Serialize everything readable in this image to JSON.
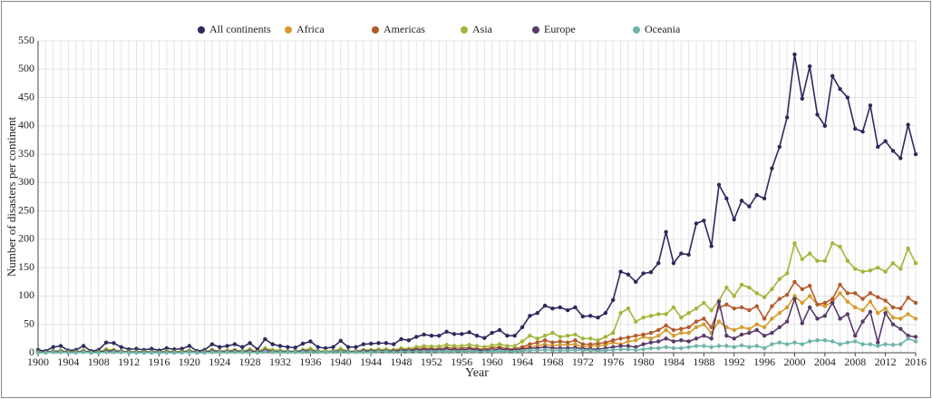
{
  "chart_data": {
    "type": "line",
    "xlabel": "Year",
    "ylabel": "Number of disasters per continent",
    "x": [
      1900,
      1901,
      1902,
      1903,
      1904,
      1905,
      1906,
      1907,
      1908,
      1909,
      1910,
      1911,
      1912,
      1913,
      1914,
      1915,
      1916,
      1917,
      1918,
      1919,
      1920,
      1921,
      1922,
      1923,
      1924,
      1925,
      1926,
      1927,
      1928,
      1929,
      1930,
      1931,
      1932,
      1933,
      1934,
      1935,
      1936,
      1937,
      1938,
      1939,
      1940,
      1941,
      1942,
      1943,
      1944,
      1945,
      1946,
      1947,
      1948,
      1949,
      1950,
      1951,
      1952,
      1953,
      1954,
      1955,
      1956,
      1957,
      1958,
      1959,
      1960,
      1961,
      1962,
      1963,
      1964,
      1965,
      1966,
      1967,
      1968,
      1969,
      1970,
      1971,
      1972,
      1973,
      1974,
      1975,
      1976,
      1977,
      1978,
      1979,
      1980,
      1981,
      1982,
      1983,
      1984,
      1985,
      1986,
      1987,
      1988,
      1989,
      1990,
      1991,
      1992,
      1993,
      1994,
      1995,
      1996,
      1997,
      1998,
      1999,
      2000,
      2001,
      2002,
      2003,
      2004,
      2005,
      2006,
      2007,
      2008,
      2009,
      2010,
      2011,
      2012,
      2013,
      2014,
      2015,
      2016
    ],
    "xlim": [
      1900,
      2016
    ],
    "xticks": [
      1900,
      1904,
      1908,
      1912,
      1916,
      1920,
      1924,
      1928,
      1932,
      1936,
      1940,
      1944,
      1948,
      1952,
      1956,
      1960,
      1964,
      1968,
      1972,
      1976,
      1980,
      1984,
      1988,
      1992,
      1996,
      2000,
      2004,
      2008,
      2012,
      2016
    ],
    "ylim": [
      0,
      550
    ],
    "yticks": [
      0,
      50,
      100,
      150,
      200,
      250,
      300,
      350,
      400,
      450,
      500,
      550
    ],
    "grid": true,
    "legend": "top",
    "series": [
      {
        "name": "All continents",
        "color": "#2d2a5e",
        "values": [
          5,
          3,
          10,
          12,
          4,
          5,
          12,
          3,
          5,
          18,
          17,
          10,
          6,
          7,
          5,
          7,
          4,
          8,
          6,
          7,
          12,
          3,
          5,
          15,
          10,
          12,
          15,
          10,
          17,
          6,
          24,
          15,
          12,
          10,
          9,
          16,
          20,
          10,
          8,
          10,
          21,
          10,
          10,
          15,
          16,
          17,
          17,
          15,
          24,
          22,
          28,
          32,
          30,
          30,
          37,
          33,
          33,
          36,
          30,
          26,
          35,
          40,
          30,
          30,
          45,
          65,
          70,
          83,
          78,
          80,
          75,
          80,
          64,
          65,
          62,
          70,
          93,
          143,
          138,
          125,
          140,
          142,
          158,
          213,
          158,
          175,
          173,
          228,
          233,
          188,
          296,
          272,
          235,
          268,
          258,
          278,
          272,
          325,
          363,
          415,
          526,
          448,
          505,
          420,
          400,
          488,
          465,
          450,
          395,
          390,
          436,
          363,
          373,
          356,
          343,
          402,
          350
        ]
      },
      {
        "name": "Africa",
        "color": "#d69a2d",
        "values": [
          1,
          0,
          2,
          2,
          1,
          1,
          2,
          0,
          1,
          3,
          3,
          2,
          1,
          1,
          1,
          1,
          1,
          1,
          1,
          1,
          2,
          0,
          1,
          2,
          2,
          2,
          2,
          2,
          3,
          1,
          4,
          2,
          2,
          2,
          1,
          3,
          3,
          2,
          1,
          2,
          3,
          2,
          2,
          2,
          3,
          3,
          3,
          2,
          4,
          3,
          4,
          5,
          5,
          5,
          6,
          5,
          5,
          6,
          5,
          4,
          6,
          7,
          5,
          5,
          8,
          10,
          12,
          15,
          12,
          14,
          14,
          15,
          10,
          12,
          12,
          14,
          18,
          15,
          20,
          22,
          28,
          25,
          30,
          40,
          30,
          35,
          35,
          45,
          50,
          35,
          55,
          45,
          40,
          45,
          42,
          50,
          45,
          60,
          70,
          80,
          100,
          88,
          100,
          85,
          82,
          90,
          105,
          90,
          80,
          75,
          90,
          70,
          78,
          62,
          60,
          68,
          60
        ]
      },
      {
        "name": "Americas",
        "color": "#b35a2a",
        "values": [
          1,
          1,
          2,
          3,
          1,
          1,
          3,
          1,
          1,
          4,
          4,
          2,
          1,
          2,
          1,
          2,
          1,
          2,
          1,
          2,
          3,
          1,
          1,
          4,
          2,
          3,
          4,
          2,
          4,
          1,
          6,
          3,
          3,
          2,
          2,
          4,
          5,
          2,
          2,
          2,
          5,
          2,
          2,
          3,
          4,
          4,
          4,
          3,
          6,
          5,
          7,
          8,
          7,
          7,
          9,
          8,
          8,
          9,
          7,
          6,
          9,
          10,
          7,
          7,
          10,
          15,
          18,
          22,
          18,
          20,
          18,
          22,
          15,
          15,
          16,
          18,
          22,
          25,
          27,
          30,
          32,
          35,
          40,
          48,
          40,
          42,
          45,
          55,
          60,
          45,
          80,
          85,
          78,
          80,
          75,
          82,
          60,
          82,
          95,
          102,
          125,
          112,
          118,
          85,
          88,
          95,
          120,
          105,
          105,
          95,
          105,
          98,
          92,
          80,
          78,
          97,
          88
        ]
      },
      {
        "name": "Asia",
        "color": "#a3b53a",
        "values": [
          2,
          1,
          3,
          4,
          2,
          2,
          4,
          1,
          2,
          6,
          5,
          3,
          2,
          2,
          2,
          2,
          1,
          3,
          2,
          2,
          4,
          1,
          2,
          5,
          3,
          4,
          5,
          3,
          6,
          2,
          8,
          5,
          4,
          3,
          3,
          5,
          7,
          3,
          3,
          3,
          7,
          3,
          3,
          5,
          5,
          6,
          6,
          5,
          8,
          7,
          10,
          12,
          11,
          11,
          14,
          12,
          12,
          14,
          12,
          10,
          13,
          15,
          12,
          12,
          20,
          30,
          25,
          30,
          35,
          28,
          30,
          32,
          25,
          25,
          22,
          28,
          35,
          70,
          78,
          55,
          62,
          65,
          68,
          68,
          80,
          62,
          70,
          78,
          88,
          75,
          92,
          115,
          100,
          120,
          115,
          105,
          98,
          112,
          130,
          140,
          193,
          165,
          175,
          162,
          162,
          193,
          187,
          162,
          148,
          143,
          145,
          150,
          143,
          158,
          148,
          184,
          158
        ]
      },
      {
        "name": "Europe",
        "color": "#5a3a6a",
        "values": [
          1,
          1,
          2,
          2,
          1,
          1,
          2,
          1,
          1,
          3,
          3,
          2,
          1,
          1,
          1,
          1,
          1,
          1,
          1,
          1,
          2,
          1,
          1,
          3,
          2,
          2,
          3,
          2,
          3,
          1,
          4,
          2,
          2,
          2,
          2,
          3,
          3,
          2,
          1,
          2,
          3,
          2,
          2,
          3,
          3,
          3,
          3,
          3,
          4,
          4,
          5,
          5,
          5,
          5,
          6,
          5,
          5,
          6,
          5,
          4,
          5,
          6,
          5,
          5,
          6,
          8,
          8,
          10,
          8,
          8,
          8,
          9,
          7,
          7,
          6,
          8,
          10,
          12,
          12,
          10,
          15,
          18,
          20,
          25,
          20,
          22,
          20,
          25,
          30,
          25,
          90,
          30,
          25,
          32,
          35,
          40,
          30,
          35,
          45,
          55,
          95,
          52,
          80,
          60,
          65,
          88,
          60,
          68,
          30,
          55,
          72,
          18,
          70,
          50,
          42,
          30,
          28
        ]
      },
      {
        "name": "Oceania",
        "color": "#6fb5a8",
        "values": [
          0,
          0,
          1,
          1,
          0,
          0,
          1,
          0,
          0,
          1,
          1,
          1,
          0,
          0,
          0,
          0,
          0,
          0,
          0,
          0,
          1,
          0,
          0,
          1,
          1,
          1,
          1,
          1,
          1,
          0,
          2,
          1,
          1,
          1,
          1,
          1,
          2,
          1,
          1,
          1,
          2,
          1,
          1,
          1,
          1,
          2,
          2,
          1,
          2,
          2,
          2,
          2,
          2,
          2,
          3,
          2,
          2,
          3,
          2,
          2,
          3,
          3,
          2,
          2,
          3,
          4,
          4,
          5,
          4,
          4,
          4,
          5,
          4,
          4,
          3,
          4,
          5,
          6,
          6,
          5,
          6,
          8,
          8,
          10,
          8,
          8,
          10,
          12,
          12,
          10,
          12,
          12,
          10,
          13,
          10,
          12,
          8,
          15,
          18,
          15,
          18,
          15,
          20,
          22,
          22,
          20,
          15,
          18,
          20,
          15,
          15,
          12,
          15,
          14,
          15,
          25,
          20
        ]
      }
    ]
  }
}
